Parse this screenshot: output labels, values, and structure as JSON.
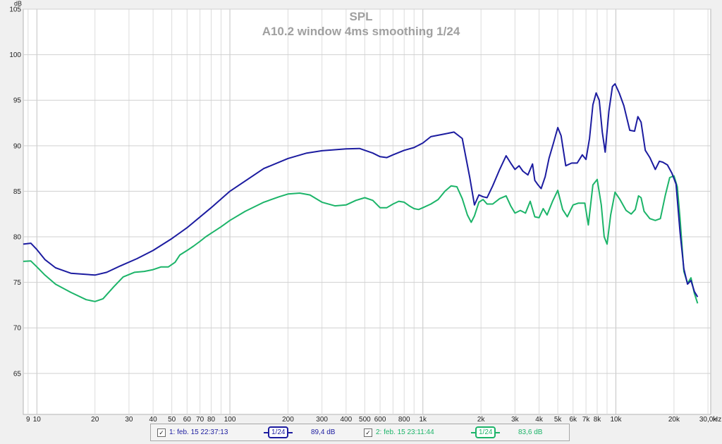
{
  "chart_data": {
    "type": "line",
    "title": "SPL",
    "subtitle": "A10.2 window 4ms smoothing 1/24",
    "ylabel": "dB",
    "xunit": "Hz",
    "xscale": "log",
    "xlim": [
      8.5,
      31000
    ],
    "ylim": [
      60.5,
      105
    ],
    "grid": true,
    "y_ticks": [
      65,
      70,
      75,
      80,
      85,
      90,
      95,
      100,
      105
    ],
    "x_ticks": [
      {
        "value": 9,
        "label": "9"
      },
      {
        "value": 10,
        "label": "10"
      },
      {
        "value": 20,
        "label": "20"
      },
      {
        "value": 30,
        "label": "30"
      },
      {
        "value": 40,
        "label": "40"
      },
      {
        "value": 50,
        "label": "50"
      },
      {
        "value": 60,
        "label": "60"
      },
      {
        "value": 70,
        "label": "70"
      },
      {
        "value": 80,
        "label": "80"
      },
      {
        "value": 100,
        "label": "100"
      },
      {
        "value": 200,
        "label": "200"
      },
      {
        "value": 300,
        "label": "300"
      },
      {
        "value": 400,
        "label": "400"
      },
      {
        "value": 500,
        "label": "500"
      },
      {
        "value": 600,
        "label": "600"
      },
      {
        "value": 800,
        "label": "800"
      },
      {
        "value": 1000,
        "label": "1k"
      },
      {
        "value": 2000,
        "label": "2k"
      },
      {
        "value": 3000,
        "label": "3k"
      },
      {
        "value": 4000,
        "label": "4k"
      },
      {
        "value": 5000,
        "label": "5k"
      },
      {
        "value": 6000,
        "label": "6k"
      },
      {
        "value": 7000,
        "label": "7k"
      },
      {
        "value": 8000,
        "label": "8k"
      },
      {
        "value": 10000,
        "label": "10k"
      },
      {
        "value": 20000,
        "label": "20k"
      },
      {
        "value": 30000,
        "label": "30,0k"
      }
    ],
    "series": [
      {
        "name": "1: feb. 15 22:37:13",
        "color": "#1c1ca0",
        "points": [
          [
            8.5,
            79.2
          ],
          [
            9.3,
            79.3
          ],
          [
            10,
            78.6
          ],
          [
            11,
            77.5
          ],
          [
            12.5,
            76.6
          ],
          [
            15,
            76.0
          ],
          [
            20,
            75.8
          ],
          [
            23,
            76.1
          ],
          [
            27,
            76.8
          ],
          [
            33,
            77.6
          ],
          [
            40,
            78.5
          ],
          [
            50,
            79.8
          ],
          [
            60,
            81.0
          ],
          [
            80,
            83.2
          ],
          [
            100,
            85.0
          ],
          [
            150,
            87.5
          ],
          [
            200,
            88.6
          ],
          [
            250,
            89.2
          ],
          [
            300,
            89.45
          ],
          [
            400,
            89.65
          ],
          [
            470,
            89.7
          ],
          [
            550,
            89.2
          ],
          [
            600,
            88.8
          ],
          [
            650,
            88.7
          ],
          [
            700,
            89.0
          ],
          [
            800,
            89.5
          ],
          [
            900,
            89.8
          ],
          [
            1000,
            90.3
          ],
          [
            1100,
            91.0
          ],
          [
            1300,
            91.3
          ],
          [
            1450,
            91.5
          ],
          [
            1600,
            90.8
          ],
          [
            1750,
            86.5
          ],
          [
            1850,
            83.5
          ],
          [
            1950,
            84.6
          ],
          [
            2050,
            84.4
          ],
          [
            2150,
            84.3
          ],
          [
            2300,
            85.6
          ],
          [
            2500,
            87.4
          ],
          [
            2700,
            88.9
          ],
          [
            2850,
            88.1
          ],
          [
            3000,
            87.4
          ],
          [
            3150,
            87.8
          ],
          [
            3300,
            87.2
          ],
          [
            3500,
            86.8
          ],
          [
            3700,
            88.0
          ],
          [
            3800,
            86.2
          ],
          [
            3950,
            85.7
          ],
          [
            4100,
            85.3
          ],
          [
            4300,
            86.6
          ],
          [
            4500,
            88.6
          ],
          [
            4750,
            90.3
          ],
          [
            5000,
            92.0
          ],
          [
            5200,
            91.1
          ],
          [
            5500,
            87.8
          ],
          [
            5900,
            88.1
          ],
          [
            6300,
            88.1
          ],
          [
            6700,
            89.0
          ],
          [
            7000,
            88.5
          ],
          [
            7300,
            90.8
          ],
          [
            7600,
            94.5
          ],
          [
            7900,
            95.8
          ],
          [
            8200,
            95.0
          ],
          [
            8500,
            91.5
          ],
          [
            8800,
            89.3
          ],
          [
            9200,
            93.8
          ],
          [
            9600,
            96.5
          ],
          [
            9900,
            96.8
          ],
          [
            10400,
            95.8
          ],
          [
            11000,
            94.4
          ],
          [
            11800,
            91.7
          ],
          [
            12500,
            91.6
          ],
          [
            13000,
            93.2
          ],
          [
            13500,
            92.6
          ],
          [
            14200,
            89.5
          ],
          [
            15000,
            88.7
          ],
          [
            16000,
            87.4
          ],
          [
            16800,
            88.3
          ],
          [
            17500,
            88.2
          ],
          [
            18500,
            87.9
          ],
          [
            19500,
            87.0
          ],
          [
            20500,
            85.8
          ],
          [
            21500,
            80.5
          ],
          [
            22500,
            76.5
          ],
          [
            23500,
            74.8
          ],
          [
            24500,
            75.2
          ],
          [
            25500,
            74.0
          ],
          [
            26500,
            73.4
          ]
        ]
      },
      {
        "name": "2: feb. 15 23:11:44",
        "color": "#1cb469",
        "points": [
          [
            8.5,
            77.3
          ],
          [
            9.3,
            77.35
          ],
          [
            10,
            76.7
          ],
          [
            11,
            75.8
          ],
          [
            12.5,
            74.8
          ],
          [
            15,
            73.9
          ],
          [
            18,
            73.1
          ],
          [
            20,
            72.9
          ],
          [
            22,
            73.2
          ],
          [
            25,
            74.5
          ],
          [
            28,
            75.6
          ],
          [
            32,
            76.1
          ],
          [
            36,
            76.2
          ],
          [
            40,
            76.4
          ],
          [
            44,
            76.7
          ],
          [
            48,
            76.7
          ],
          [
            52,
            77.2
          ],
          [
            55,
            78.0
          ],
          [
            60,
            78.5
          ],
          [
            65,
            79.0
          ],
          [
            70,
            79.5
          ],
          [
            75,
            80.0
          ],
          [
            80,
            80.4
          ],
          [
            90,
            81.1
          ],
          [
            100,
            81.8
          ],
          [
            120,
            82.8
          ],
          [
            150,
            83.8
          ],
          [
            180,
            84.4
          ],
          [
            200,
            84.7
          ],
          [
            230,
            84.8
          ],
          [
            260,
            84.6
          ],
          [
            300,
            83.8
          ],
          [
            350,
            83.4
          ],
          [
            400,
            83.5
          ],
          [
            450,
            84.0
          ],
          [
            500,
            84.3
          ],
          [
            550,
            84.0
          ],
          [
            600,
            83.2
          ],
          [
            650,
            83.2
          ],
          [
            700,
            83.6
          ],
          [
            750,
            83.9
          ],
          [
            800,
            83.8
          ],
          [
            850,
            83.4
          ],
          [
            900,
            83.1
          ],
          [
            950,
            83.0
          ],
          [
            1000,
            83.2
          ],
          [
            1100,
            83.6
          ],
          [
            1200,
            84.1
          ],
          [
            1300,
            85.0
          ],
          [
            1400,
            85.6
          ],
          [
            1500,
            85.5
          ],
          [
            1600,
            84.2
          ],
          [
            1700,
            82.4
          ],
          [
            1780,
            81.6
          ],
          [
            1850,
            82.3
          ],
          [
            1950,
            83.8
          ],
          [
            2050,
            84.1
          ],
          [
            2150,
            83.6
          ],
          [
            2300,
            83.6
          ],
          [
            2500,
            84.2
          ],
          [
            2700,
            84.5
          ],
          [
            2850,
            83.4
          ],
          [
            3000,
            82.6
          ],
          [
            3200,
            82.9
          ],
          [
            3400,
            82.6
          ],
          [
            3600,
            83.9
          ],
          [
            3800,
            82.2
          ],
          [
            4000,
            82.1
          ],
          [
            4200,
            83.1
          ],
          [
            4400,
            82.4
          ],
          [
            4700,
            83.9
          ],
          [
            5000,
            85.1
          ],
          [
            5300,
            83.0
          ],
          [
            5600,
            82.2
          ],
          [
            6000,
            83.5
          ],
          [
            6400,
            83.7
          ],
          [
            6900,
            83.7
          ],
          [
            7200,
            81.3
          ],
          [
            7600,
            85.7
          ],
          [
            8000,
            86.3
          ],
          [
            8400,
            83.5
          ],
          [
            8700,
            80.0
          ],
          [
            9000,
            79.2
          ],
          [
            9400,
            82.4
          ],
          [
            9900,
            84.9
          ],
          [
            10500,
            84.1
          ],
          [
            11300,
            82.9
          ],
          [
            12000,
            82.5
          ],
          [
            12600,
            83.0
          ],
          [
            13100,
            84.5
          ],
          [
            13500,
            84.3
          ],
          [
            14000,
            82.8
          ],
          [
            15000,
            82.0
          ],
          [
            16000,
            81.8
          ],
          [
            17000,
            82.0
          ],
          [
            18000,
            84.5
          ],
          [
            19000,
            86.5
          ],
          [
            20000,
            86.7
          ],
          [
            20800,
            85.5
          ],
          [
            21500,
            82.0
          ],
          [
            22500,
            76.2
          ],
          [
            23500,
            74.9
          ],
          [
            24500,
            75.5
          ],
          [
            25500,
            73.8
          ],
          [
            26500,
            72.7
          ]
        ]
      }
    ]
  },
  "legend": {
    "items": [
      {
        "check": "✓",
        "label": "1: feb. 15 22:37:13",
        "smoothing": "1/24",
        "value": "89,4 dB",
        "color": "#1c1ca0"
      },
      {
        "check": "✓",
        "label": "2: feb. 15 23:11:44",
        "smoothing": "1/24",
        "value": "83,6 dB",
        "color": "#1cb469"
      }
    ]
  }
}
